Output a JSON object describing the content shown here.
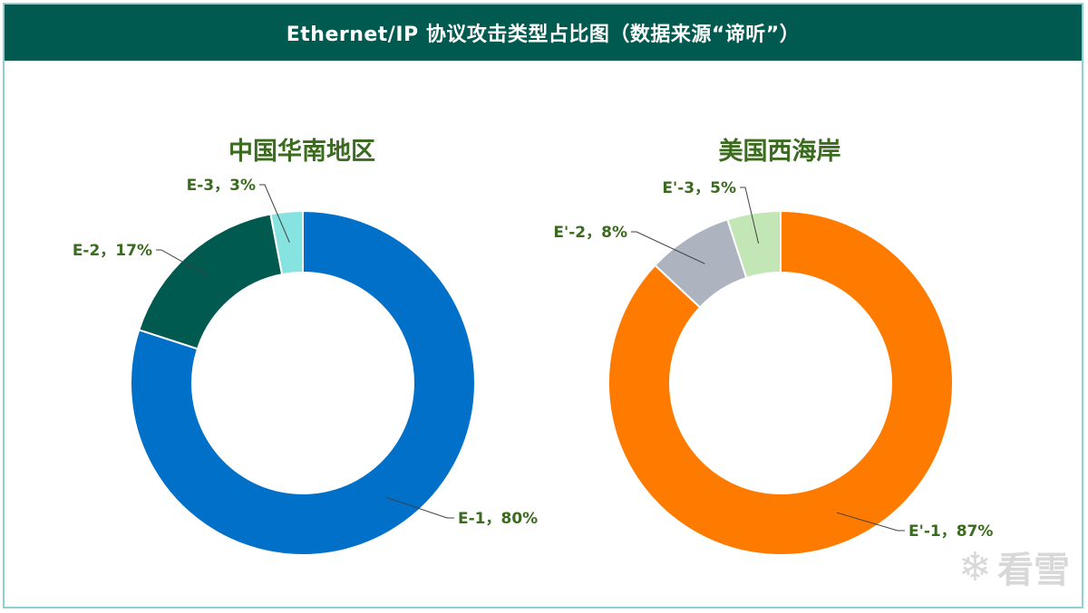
{
  "header": {
    "title": "Ethernet/IP 协议攻击类型占比图（数据来源“谛听”）"
  },
  "colors": {
    "header_bg": "#005a50",
    "title_green": "#3a6b1e",
    "frame_border": "#8fd0d0"
  },
  "watermark": {
    "text": "看雪",
    "icon": "snowflake-icon"
  },
  "chart_data": [
    {
      "type": "pie",
      "variant": "donut",
      "title": "中国华南地区",
      "slices": [
        {
          "label": "E-1",
          "value": 80,
          "display": "E-1，80%",
          "color": "#0070c8"
        },
        {
          "label": "E-2",
          "value": 17,
          "display": "E-2，17%",
          "color": "#005a50"
        },
        {
          "label": "E-3",
          "value": 3,
          "display": "E-3，3%",
          "color": "#86e3e0"
        }
      ]
    },
    {
      "type": "pie",
      "variant": "donut",
      "title": "美国西海岸",
      "slices": [
        {
          "label": "E'-1",
          "value": 87,
          "display": "E'-1，87%",
          "color": "#ff7b00"
        },
        {
          "label": "E'-2",
          "value": 8,
          "display": "E'-2，8%",
          "color": "#adb4c0"
        },
        {
          "label": "E'-3",
          "value": 5,
          "display": "E'-3，5%",
          "color": "#c2e6b5"
        }
      ]
    }
  ]
}
